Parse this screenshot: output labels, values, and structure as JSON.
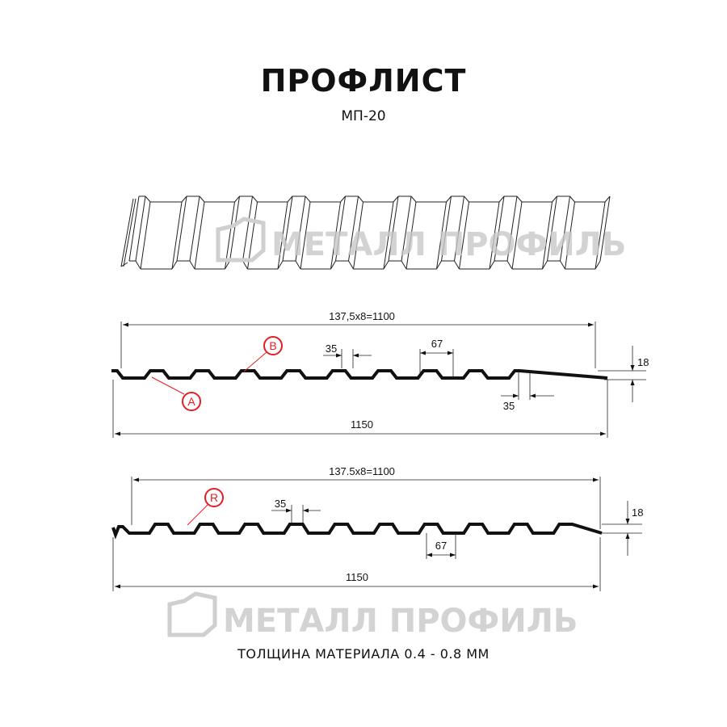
{
  "title": "ПРОФЛИСТ",
  "subtitle": "МП-20",
  "footer": "ТОЛЩИНА МАТЕРИАЛА 0.4 - 0.8 ММ",
  "watermark": "МЕТАЛЛ ПРОФИЛЬ",
  "colors": {
    "profile": "#111111",
    "callout": "#e31e24",
    "watermark": "#c8c8c8"
  },
  "profile_a": {
    "pitch_label": "137,5x8=1100",
    "total_label": "1150",
    "crest_label": "35",
    "crest_label_2": "35",
    "trough_label": "67",
    "height_label": "18",
    "callout_a": "A",
    "callout_b": "B"
  },
  "profile_b": {
    "pitch_label": "137.5x8=1100",
    "total_label": "1150",
    "crest_label": "35",
    "trough_label": "67",
    "height_label": "18",
    "callout_r": "R"
  }
}
